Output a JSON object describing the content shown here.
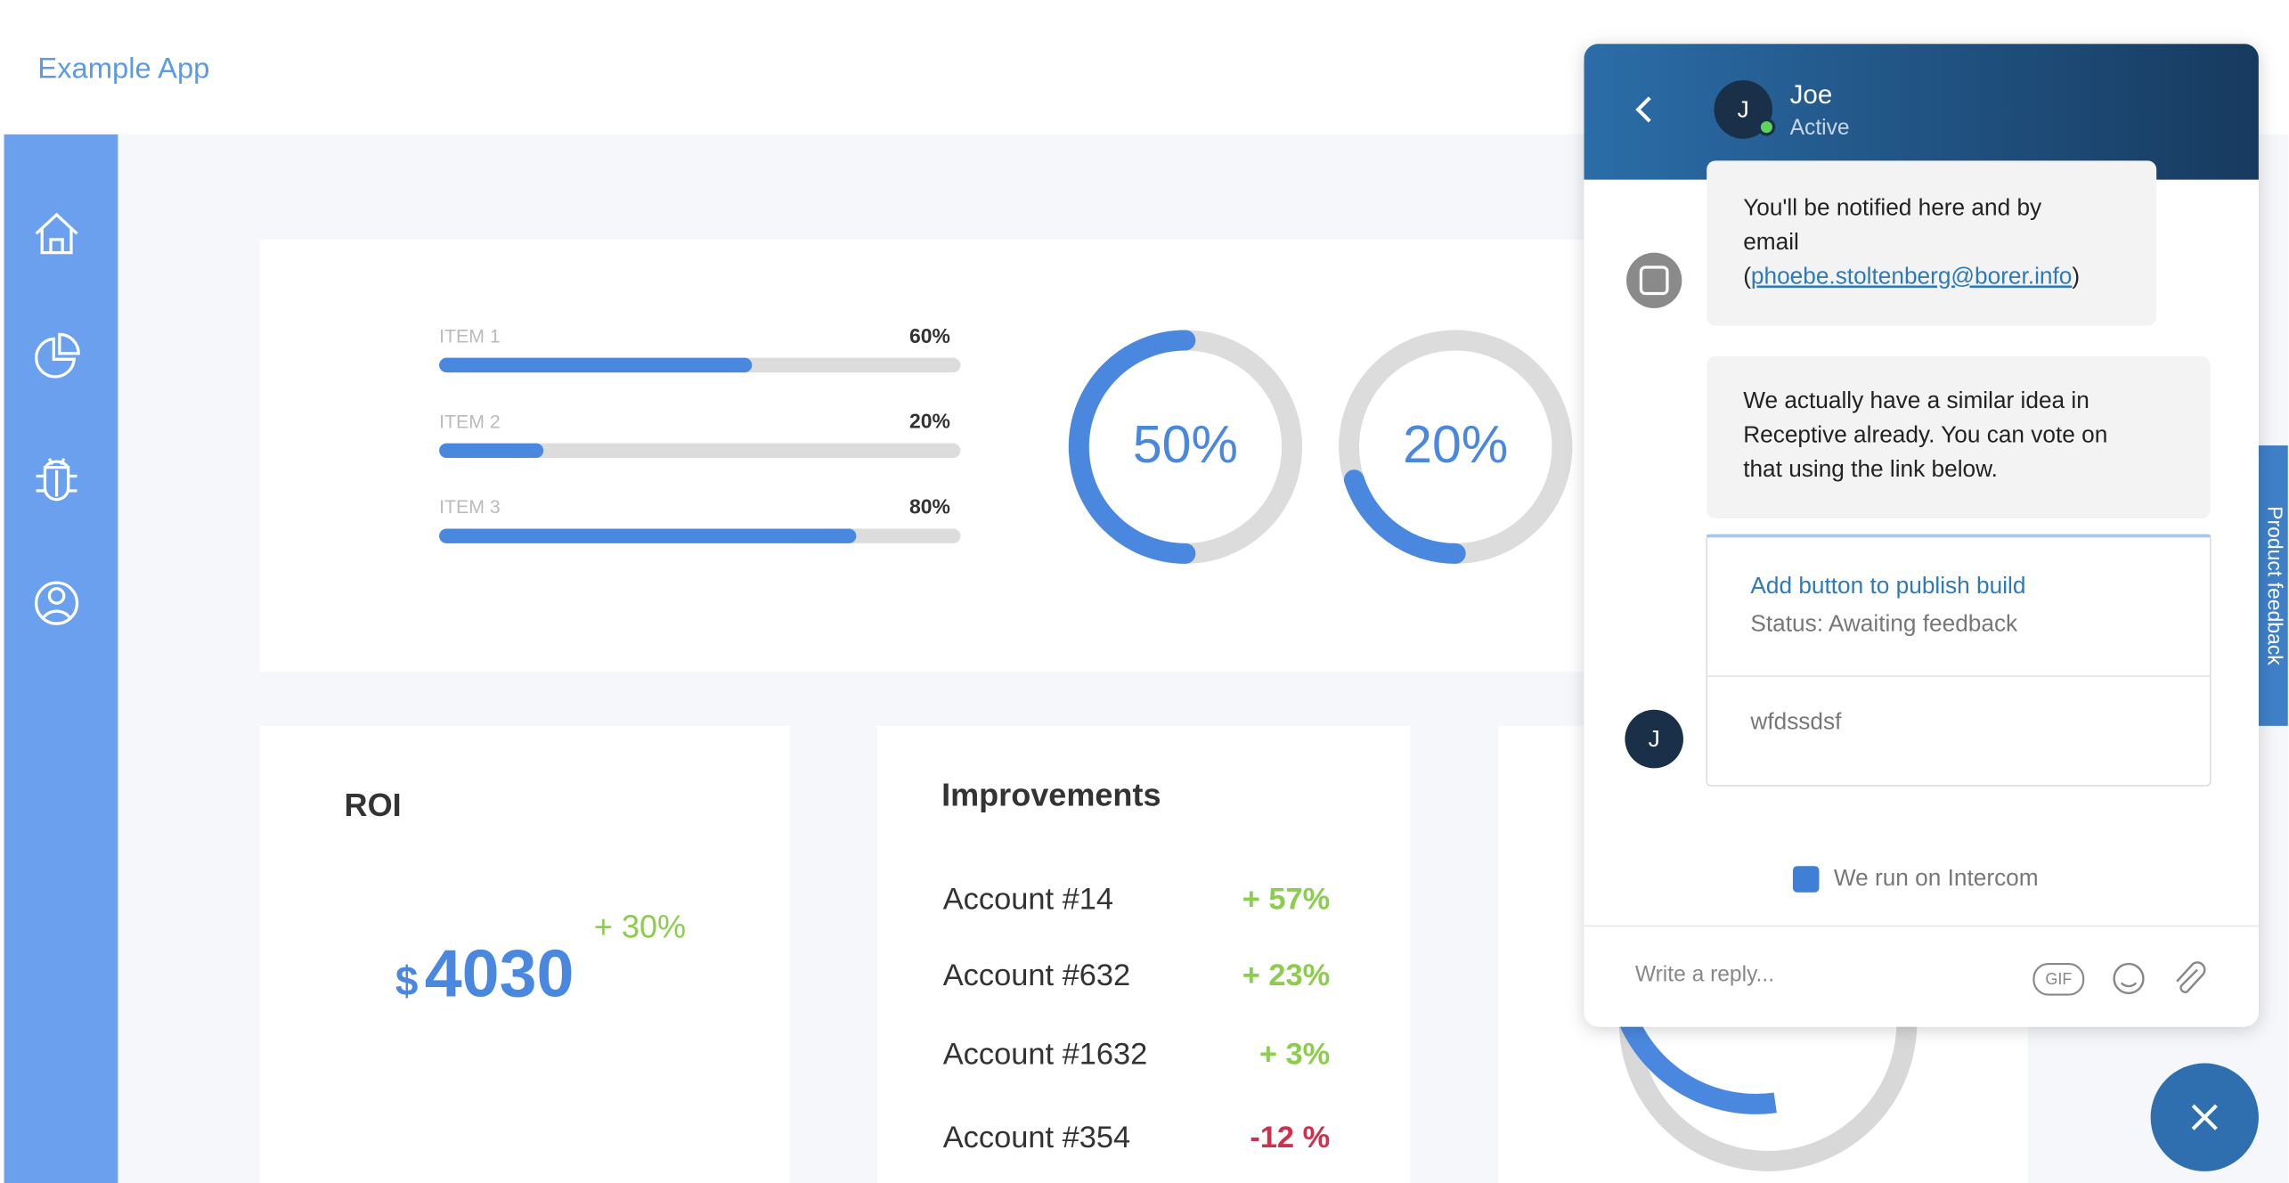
{
  "app": {
    "title": "Example App"
  },
  "progress": {
    "items": [
      {
        "label": "ITEM 1",
        "value": 60,
        "value_label": "60%"
      },
      {
        "label": "ITEM 2",
        "value": 20,
        "value_label": "20%"
      },
      {
        "label": "ITEM 3",
        "value": 80,
        "value_label": "80%"
      }
    ]
  },
  "donuts": [
    {
      "value": 50,
      "value_label": "50%"
    },
    {
      "value": 20,
      "value_label": "20%"
    }
  ],
  "roi": {
    "title": "ROI",
    "currency": "$",
    "amount": "4030",
    "change": "+ 30%"
  },
  "improvements": {
    "title": "Improvements",
    "rows": [
      {
        "name": "Account #14",
        "change": "+ 57%",
        "color": "#8ccc4e"
      },
      {
        "name": "Account #632",
        "change": "+ 23%",
        "color": "#8ccc4e"
      },
      {
        "name": "Account #1632",
        "change": "+ 3%",
        "color": "#8ccc4e"
      },
      {
        "name": "Account #354",
        "change": "-12 %",
        "color": "#d0304e"
      }
    ]
  },
  "side_tab": "Product feedback",
  "chat": {
    "name": "Joe",
    "status": "Active",
    "avatar": "J",
    "messages": [
      {
        "lines": [
          "You'll be notified here and by",
          "email"
        ],
        "link_open": "(",
        "link": "phoebe.stoltenberg@borer.info",
        "link_close": ")"
      },
      {
        "lines": [
          "We actually have a similar idea in",
          "Receptive already. You can vote on",
          "that using the link below."
        ]
      }
    ],
    "card": {
      "title": "Add button to publish build",
      "status": "Status: Awaiting feedback",
      "reply": "wfdssdsf"
    },
    "footer": "We run on Intercom",
    "placeholder": "Write a reply...",
    "gif": "GIF"
  }
}
